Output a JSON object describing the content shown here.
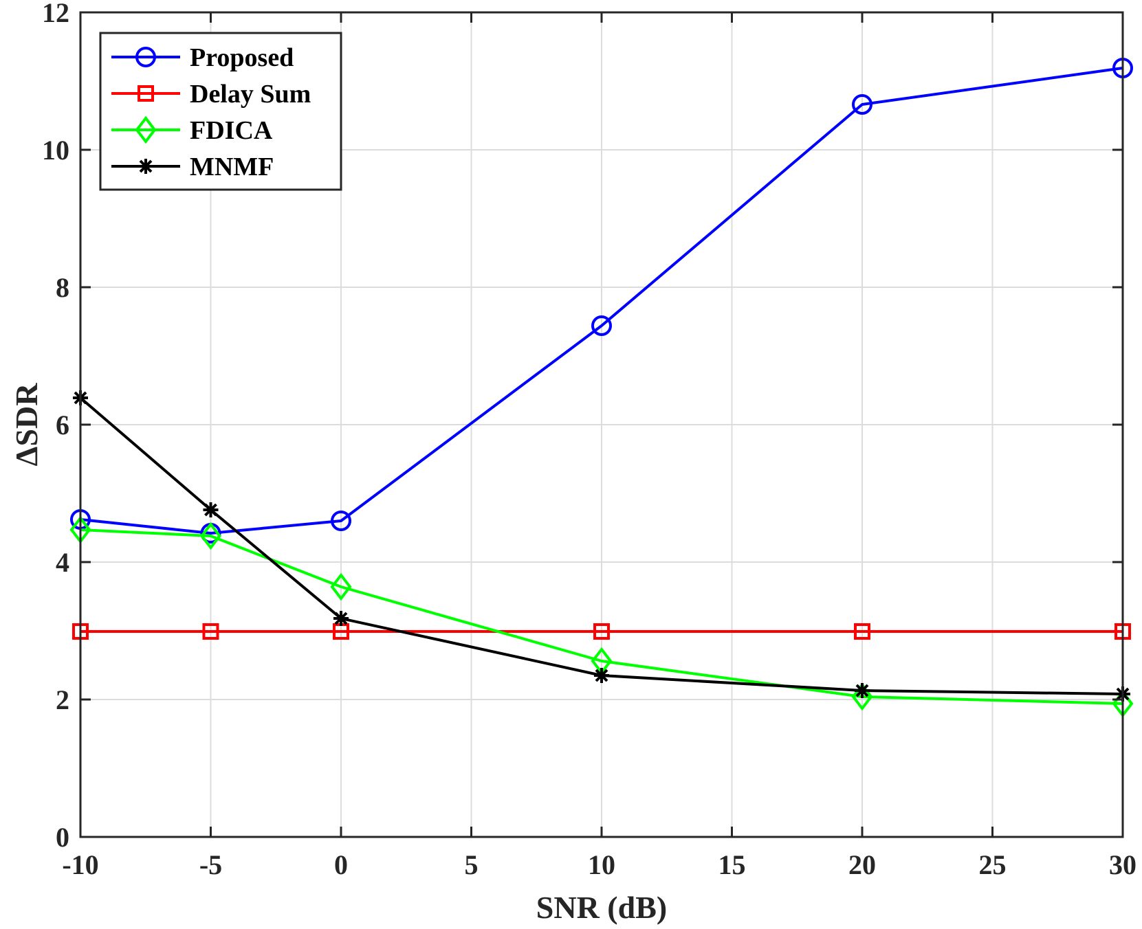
{
  "chart_data": {
    "type": "line",
    "title": "",
    "xlabel": "SNR (dB)",
    "ylabel": "ΔSDR",
    "xlim": [
      -10,
      30
    ],
    "ylim": [
      0,
      12
    ],
    "xticks": [
      -10,
      -5,
      0,
      5,
      10,
      15,
      20,
      25,
      30
    ],
    "xtick_labels": [
      "-10",
      "-5",
      "0",
      "5",
      "10",
      "15",
      "20",
      "25",
      "30"
    ],
    "yticks": [
      0,
      2,
      4,
      6,
      8,
      10,
      12
    ],
    "ytick_labels": [
      "0",
      "2",
      "4",
      "6",
      "8",
      "10",
      "12"
    ],
    "grid": true,
    "legend_position": "top-left",
    "x": [
      -10,
      -5,
      0,
      10,
      20,
      30
    ],
    "series": [
      {
        "name": "Proposed",
        "color": "#0000ff",
        "marker": "circle",
        "values": [
          4.62,
          4.42,
          4.6,
          7.44,
          10.66,
          11.19
        ]
      },
      {
        "name": "Delay Sum",
        "color": "#ff0000",
        "marker": "square",
        "values": [
          2.99,
          2.99,
          2.99,
          2.99,
          2.99,
          2.99
        ]
      },
      {
        "name": "FDICA",
        "color": "#00ff00",
        "marker": "diamond",
        "values": [
          4.47,
          4.38,
          3.64,
          2.56,
          2.04,
          1.94
        ]
      },
      {
        "name": "MNMF",
        "color": "#000000",
        "marker": "asterisk",
        "values": [
          6.39,
          4.76,
          3.18,
          2.35,
          2.13,
          2.08
        ]
      }
    ]
  }
}
